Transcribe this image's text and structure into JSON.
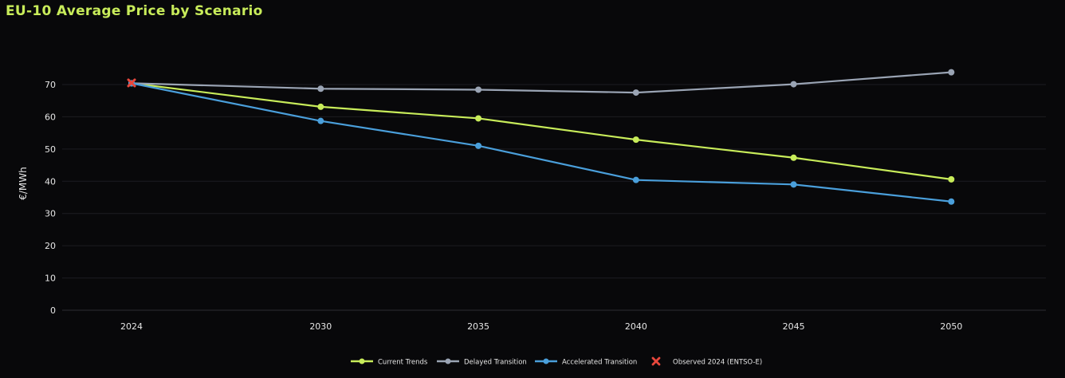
{
  "chart_data": {
    "type": "line",
    "title": "EU-10 Average Price by Scenario",
    "xlabel": "",
    "ylabel": "€/MWh",
    "x": [
      "2024",
      "2030",
      "2035",
      "2040",
      "2045",
      "2050"
    ],
    "x_values": [
      2024,
      2030,
      2035,
      2040,
      2045,
      2050
    ],
    "ylim": [
      0,
      70
    ],
    "yticks": [
      0,
      10,
      20,
      30,
      40,
      50,
      60,
      70
    ],
    "grid": true,
    "legend_position": "bottom",
    "series": [
      {
        "name": "Current Trends",
        "color": "#c8ec5a",
        "values": [
          70.4,
          63.1,
          59.5,
          52.9,
          47.3,
          40.6
        ]
      },
      {
        "name": "Delayed Transition",
        "color": "#9aa4b4",
        "values": [
          70.4,
          68.7,
          68.4,
          67.5,
          70.1,
          73.8
        ]
      },
      {
        "name": "Accelerated Transition",
        "color": "#4a9fdb",
        "values": [
          70.4,
          58.7,
          51.0,
          40.4,
          39.0,
          33.7
        ]
      }
    ],
    "observed": {
      "name": "Observed 2024 (ENTSO-E)",
      "color": "#e8473c",
      "x": 2024,
      "y": 70.5
    }
  }
}
